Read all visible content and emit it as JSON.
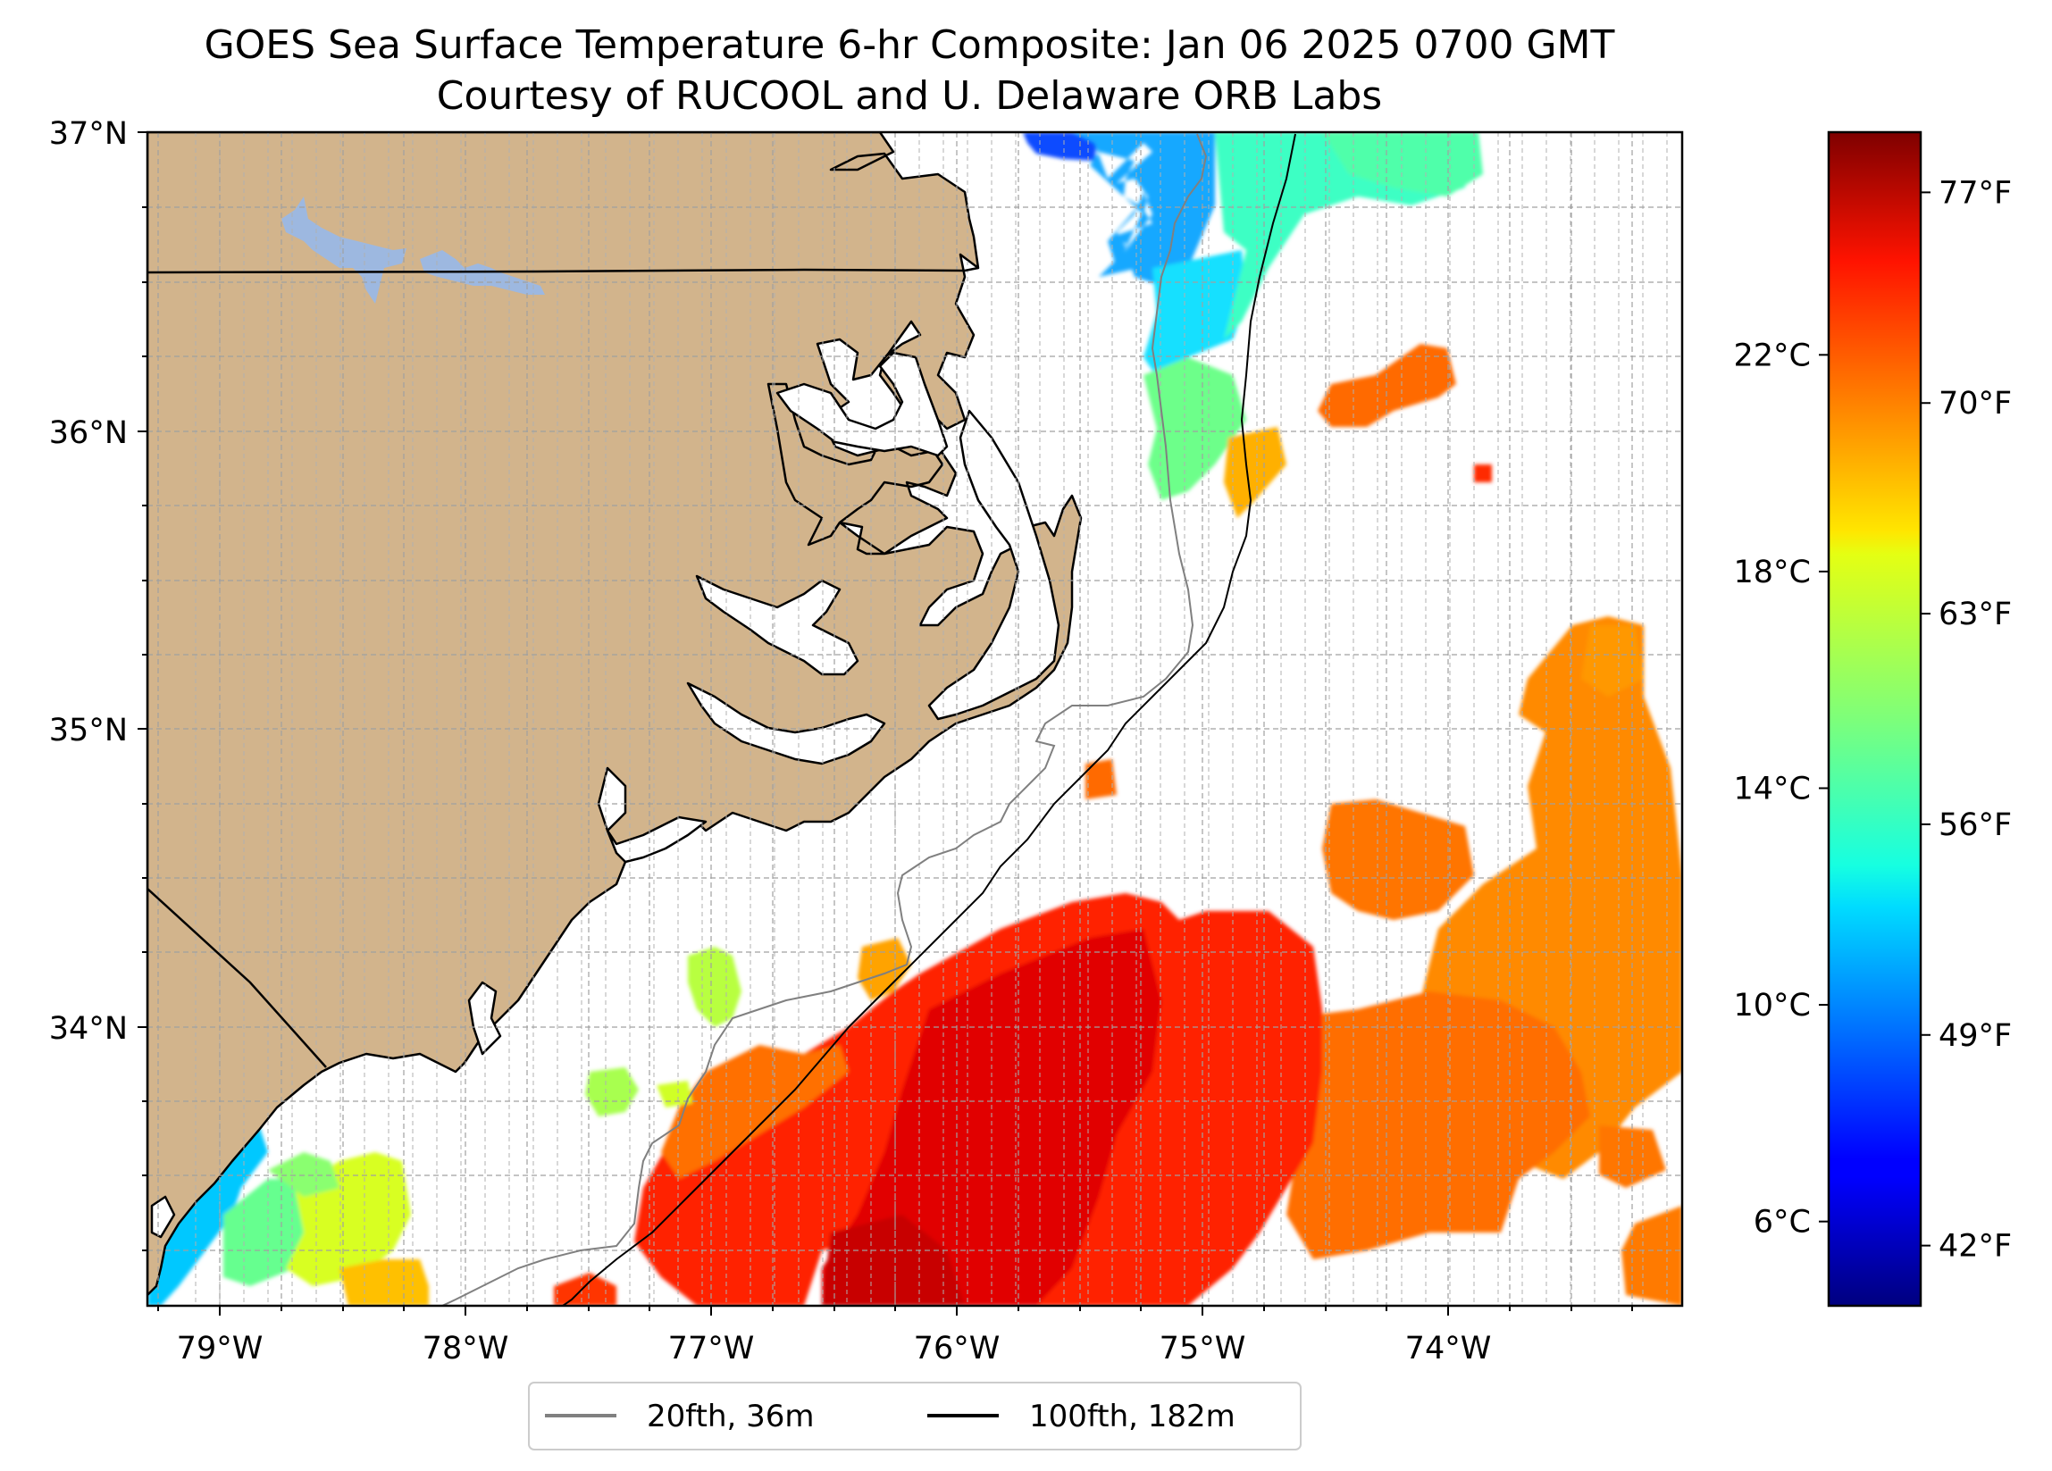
{
  "title": {
    "line1": "GOES Sea Surface Temperature 6-hr Composite: Jan 06 2025 0700 GMT",
    "line2": "Courtesy of RUCOOL and U. Delaware ORB Labs"
  },
  "map": {
    "lon_range": [
      -79.3,
      -73.05
    ],
    "lat_range": [
      33.05,
      37.0
    ],
    "lat_ticks": [
      {
        "value": 37,
        "label": "37°N"
      },
      {
        "value": 36,
        "label": "36°N"
      },
      {
        "value": 35,
        "label": "35°N"
      },
      {
        "value": 34,
        "label": "34°N"
      }
    ],
    "lon_ticks": [
      {
        "value": -79,
        "label": "79°W"
      },
      {
        "value": -78,
        "label": "78°W"
      },
      {
        "value": -77,
        "label": "77°W"
      },
      {
        "value": -76,
        "label": "76°W"
      },
      {
        "value": -75,
        "label": "75°W"
      },
      {
        "value": -74,
        "label": "74°W"
      }
    ],
    "gridlines": true,
    "colors": {
      "land": "#d2b48c",
      "lake": "#9db8e0",
      "ocean_no_data": "#ffffff",
      "coastline": "#000000",
      "isobath_36m": "#808080",
      "isobath_182m": "#000000"
    }
  },
  "legend": {
    "placement": "bottom-center",
    "items": [
      {
        "label": "20fth, 36m",
        "color": "#808080"
      },
      {
        "label": "100fth, 182m",
        "color": "#000000"
      }
    ]
  },
  "colorbar": {
    "colormap": "jet",
    "range_f": [
      40,
      79
    ],
    "celsius_ticks": [
      {
        "value": 22,
        "label": "22°C"
      },
      {
        "value": 18,
        "label": "18°C"
      },
      {
        "value": 14,
        "label": "14°C"
      },
      {
        "value": 10,
        "label": "10°C"
      },
      {
        "value": 6,
        "label": "6°C"
      }
    ],
    "fahrenheit_ticks": [
      {
        "value": 77,
        "label": "77°F"
      },
      {
        "value": 70,
        "label": "70°F"
      },
      {
        "value": 63,
        "label": "63°F"
      },
      {
        "value": 56,
        "label": "56°F"
      },
      {
        "value": 49,
        "label": "49°F"
      },
      {
        "value": 42,
        "label": "42°F"
      }
    ]
  }
}
